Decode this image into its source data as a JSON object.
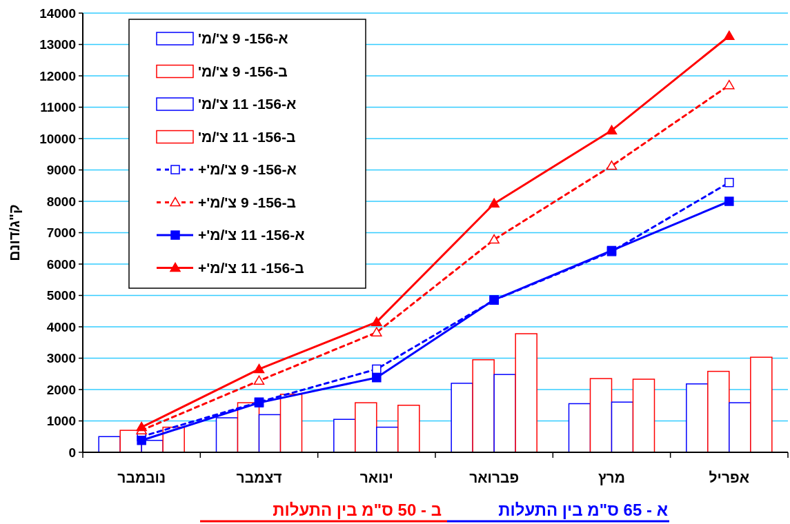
{
  "chart_data": {
    "type": "bar",
    "ylabel": "ק\"ג/דונם",
    "categories": [
      "נובמבר",
      "דצמבר",
      "ינואר",
      "פברואר",
      "מרץ",
      "אפריל"
    ],
    "ylim": [
      0,
      14000
    ],
    "yticks": [
      0,
      1000,
      2000,
      3000,
      4000,
      5000,
      6000,
      7000,
      8000,
      9000,
      10000,
      11000,
      12000,
      13000,
      14000
    ],
    "grid": "y",
    "legend": "top left",
    "series": [
      {
        "name": "א-156- 9 צ'/מ'",
        "color": "#0000ff",
        "values": [
          500,
          1100,
          1050,
          2200,
          1550,
          2180
        ]
      },
      {
        "name": "ב-156- 9 צ'/מ'",
        "color": "#ff0000",
        "values": [
          700,
          1580,
          1580,
          2950,
          2350,
          2580
        ]
      },
      {
        "name": "א-156- 11 צ'/מ'",
        "color": "#0000ff",
        "values": [
          380,
          1200,
          800,
          2480,
          1600,
          1580
        ]
      },
      {
        "name": "ב-156- 11 צ'/מ'",
        "color": "#ff0000",
        "values": [
          800,
          1850,
          1500,
          3780,
          2330,
          3030
        ]
      },
      {
        "name": "א-156- 9 צ'/מ'+",
        "type": "line",
        "color": "#0000ff",
        "marker": "square",
        "line_style": "dashed",
        "values": [
          500,
          1600,
          2650,
          4850,
          6400,
          8600
        ]
      },
      {
        "name": "ב-156- 9 צ'/מ'+",
        "type": "line",
        "color": "#ff0000",
        "marker": "triangle",
        "line_style": "dashed",
        "values": [
          700,
          2280,
          3820,
          6780,
          9130,
          11700
        ]
      },
      {
        "name": "א-156- 11 צ'/מ'+",
        "type": "line",
        "color": "#0000ff",
        "marker": "square",
        "line_style": "solid",
        "values": [
          380,
          1580,
          2380,
          4860,
          6430,
          8000
        ]
      },
      {
        "name": "ב-156- 11 צ'/מ'+",
        "type": "line",
        "color": "#ff0000",
        "marker": "triangle",
        "line_style": "solid",
        "values": [
          800,
          2650,
          4150,
          7930,
          10260,
          13270
        ]
      }
    ],
    "annotations": [
      "א - 65  ס\"מ בין התעלות",
      "ב - 50  ס\"מ בין התעלות"
    ]
  }
}
